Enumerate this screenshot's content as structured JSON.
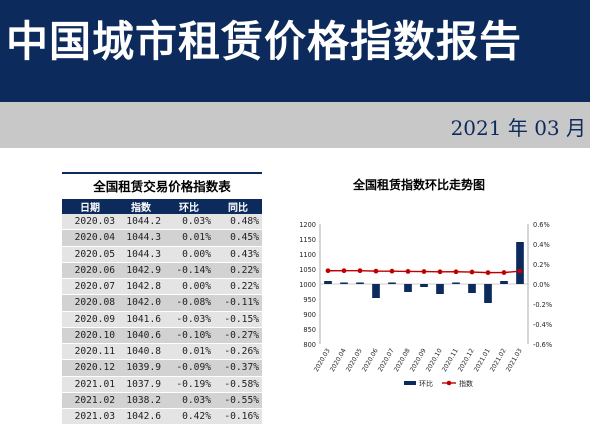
{
  "report_title": "中国城市租赁价格指数报告",
  "report_date": "2021 年 03 月",
  "table": {
    "title": "全国租赁交易价格指数表",
    "headers": [
      "日期",
      "指数",
      "环比",
      "同比"
    ],
    "rows": [
      [
        "2020.03",
        "1044.2",
        "0.03%",
        "0.48%"
      ],
      [
        "2020.04",
        "1044.3",
        "0.01%",
        "0.45%"
      ],
      [
        "2020.05",
        "1044.3",
        "0.00%",
        "0.43%"
      ],
      [
        "2020.06",
        "1042.9",
        "-0.14%",
        "0.22%"
      ],
      [
        "2020.07",
        "1042.8",
        "0.00%",
        "0.22%"
      ],
      [
        "2020.08",
        "1042.0",
        "-0.08%",
        "-0.11%"
      ],
      [
        "2020.09",
        "1041.6",
        "-0.03%",
        "-0.15%"
      ],
      [
        "2020.10",
        "1040.6",
        "-0.10%",
        "-0.27%"
      ],
      [
        "2020.11",
        "1040.8",
        "0.01%",
        "-0.26%"
      ],
      [
        "2020.12",
        "1039.9",
        "-0.09%",
        "-0.37%"
      ],
      [
        "2021.01",
        "1037.9",
        "-0.19%",
        "-0.58%"
      ],
      [
        "2021.02",
        "1038.2",
        "0.03%",
        "-0.55%"
      ],
      [
        "2021.03",
        "1042.6",
        "0.42%",
        "-0.16%"
      ]
    ]
  },
  "chart_data": {
    "type": "bar",
    "title": "全国租赁指数环比走势图",
    "categories": [
      "2020.03",
      "2020.04",
      "2020.05",
      "2020.06",
      "2020.07",
      "2020.08",
      "2020.09",
      "2020.10",
      "2020.11",
      "2020.12",
      "2021.01",
      "2021.02",
      "2021.03"
    ],
    "series": [
      {
        "name": "环比",
        "type": "bar",
        "axis": "right",
        "values": [
          0.03,
          0.01,
          0.0,
          -0.14,
          0.0,
          -0.08,
          -0.03,
          -0.1,
          0.01,
          -0.09,
          -0.19,
          0.03,
          0.42
        ]
      },
      {
        "name": "指数",
        "type": "line",
        "axis": "left",
        "values": [
          1044.2,
          1044.3,
          1044.3,
          1042.9,
          1042.8,
          1042.0,
          1041.6,
          1040.6,
          1040.8,
          1039.9,
          1037.9,
          1038.2,
          1042.6
        ]
      }
    ],
    "y_left": {
      "min": 800,
      "max": 1200,
      "ticks": [
        "1200",
        "1150",
        "1100",
        "1050",
        "1000",
        "950",
        "900",
        "850",
        "800"
      ]
    },
    "y_right": {
      "min": -0.6,
      "max": 0.6,
      "ticks": [
        "0.6%",
        "0.4%",
        "0.2%",
        "0.0%",
        "-0.2%",
        "-0.4%",
        "-0.6%"
      ]
    },
    "legend": [
      "环比",
      "指数"
    ],
    "legend_position": "bottom",
    "grid": false,
    "colors": {
      "bar": "#0d2a5c",
      "line": "#c00000"
    }
  }
}
